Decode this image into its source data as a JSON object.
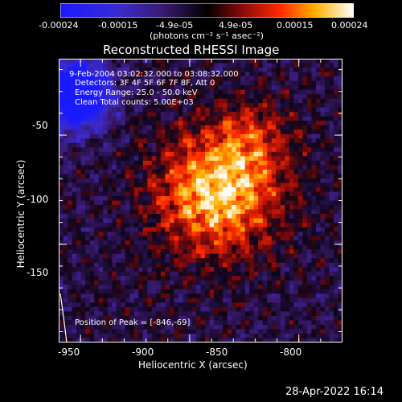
{
  "colorbar": {
    "tick_labels": [
      "-0.00024",
      "-0.00015",
      "-4.9e-05",
      "4.9e-05",
      "0.00015",
      "0.00024"
    ],
    "unit_label": "(photons cm⁻² s⁻¹ asec⁻²)",
    "range": [
      -0.00024,
      0.00024
    ]
  },
  "title": "Reconstructed RHESSI Image",
  "overlay": {
    "time_range": "9-Feb-2004 03:02:32.000 to 03:08:32.000",
    "detectors": "Detectors: 3F 4F 5F 6F 7F 8F, Att 0",
    "energy_range": "Energy Range: 25.0 - 50.0 keV",
    "method_counts": "Clean    Total counts: 5.00E+03",
    "peak_position": "Position of Peak = [-846,-69]"
  },
  "axes": {
    "xlabel": "Heliocentric X (arcsec)",
    "ylabel": "Heliocentric Y (arcsec)",
    "x_ticks": [
      "-950",
      "-900",
      "-850",
      "-800"
    ],
    "y_ticks": [
      "-50",
      "-100",
      "-150"
    ],
    "xlim": [
      -960,
      -830
    ],
    "ylim": [
      -195,
      -65
    ]
  },
  "footer": {
    "timestamp": "28-Apr-2022 16:14"
  },
  "image_data": {
    "grid_size": 64,
    "peak_xy": [
      -846,
      -69
    ],
    "colormap": "red-temperature with blue negatives"
  }
}
